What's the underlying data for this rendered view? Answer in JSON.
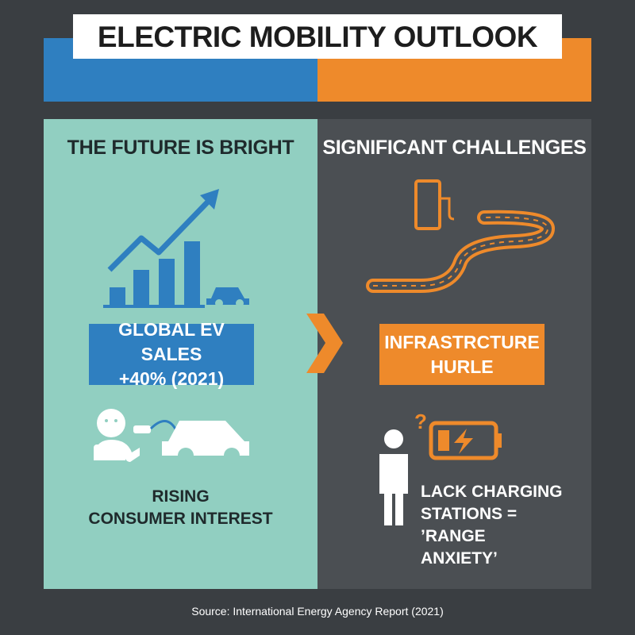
{
  "header": {
    "title": "ELECTRIC MOBILITY OUTLOOK"
  },
  "left": {
    "heading": "THE FUTURE IS BRIGHT",
    "highlight": [
      "GLOBAL EV SALES",
      "+40% (2021)"
    ],
    "caption": [
      "RISING",
      "CONSUMER INTEREST"
    ]
  },
  "right": {
    "heading": "SIGNIFICANT CHALLENGES",
    "highlight": [
      "INFRASTRCTURE",
      "HURLE"
    ],
    "caption": [
      "LACK CHARGING",
      "STATIONS =",
      "’RANGE ANXIETY’"
    ]
  },
  "footer": {
    "source": "Source: International Energy Agency Report (2021)"
  }
}
